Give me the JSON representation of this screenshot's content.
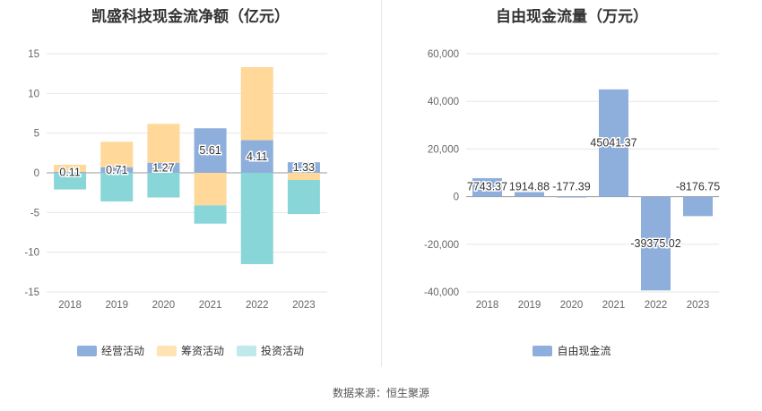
{
  "chart_data": [
    {
      "type": "bar",
      "stacked": true,
      "title": "凯盛科技现金流净额（亿元）",
      "categories": [
        "2018",
        "2019",
        "2020",
        "2021",
        "2022",
        "2023"
      ],
      "series": [
        {
          "name": "经营活动",
          "color": "#8eaedb",
          "values": [
            0.11,
            0.71,
            1.27,
            5.61,
            4.11,
            1.33
          ]
        },
        {
          "name": "筹资活动",
          "color": "#ffd89a",
          "values": [
            0.9,
            3.2,
            4.9,
            -4.1,
            9.2,
            -0.9
          ]
        },
        {
          "name": "投资活动",
          "color": "#89d6d9",
          "values": [
            -2.1,
            -3.6,
            -3.1,
            -2.3,
            -11.5,
            -4.3
          ]
        }
      ],
      "data_labels": [
        "0.11",
        "0.71",
        "1.27",
        "5.61",
        "4.11",
        "1.33"
      ],
      "yticks": [
        "15",
        "10",
        "5",
        "0",
        "-5",
        "-10",
        "-15"
      ],
      "ylim": [
        -15,
        15
      ],
      "grid": true,
      "legend_position": "bottom"
    },
    {
      "type": "bar",
      "title": "自由现金流量（万元）",
      "categories": [
        "2018",
        "2019",
        "2020",
        "2021",
        "2022",
        "2023"
      ],
      "series": [
        {
          "name": "自由现金流",
          "color": "#8eaedb",
          "values": [
            7743.37,
            1914.88,
            -177.39,
            45041.37,
            -39375.02,
            -8176.75
          ]
        }
      ],
      "data_labels": [
        "7743.37",
        "1914.88",
        "-177.39",
        "45041.37",
        "-39375.02",
        "-8176.75"
      ],
      "yticks": [
        "60,000",
        "40,000",
        "20,000",
        "0",
        "-20,000",
        "-40,000"
      ],
      "ylim": [
        -40000,
        60000
      ],
      "grid": true,
      "legend_position": "bottom"
    }
  ],
  "footer": {
    "source": "数据来源：恒生聚源"
  }
}
